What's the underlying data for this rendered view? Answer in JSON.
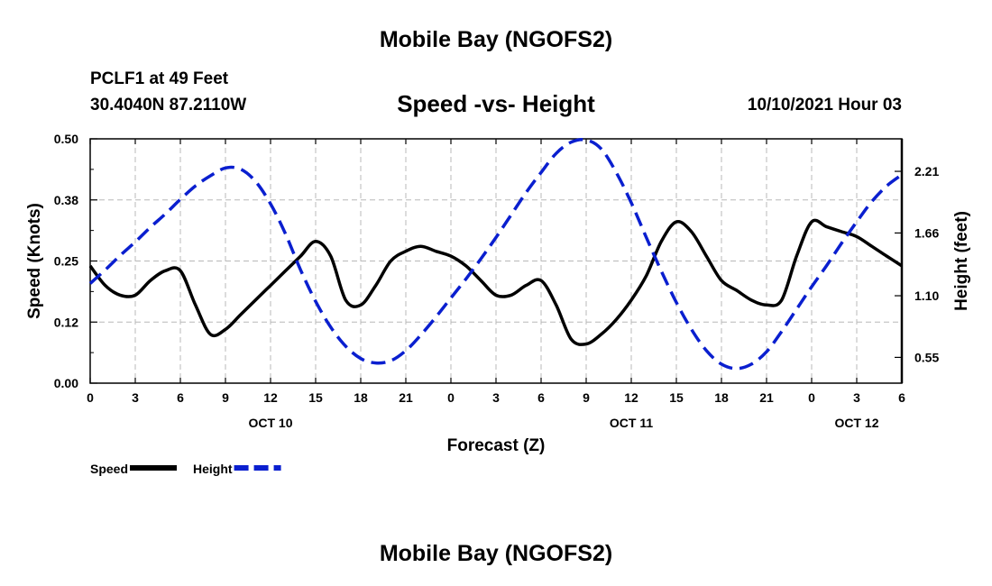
{
  "page": {
    "title": "Mobile Bay (NGOFS2)",
    "footer_title": "Mobile Bay (NGOFS2)",
    "station": "PCLF1 at 49 Feet",
    "coordinates": "30.4040N  87.2110W",
    "subtitle": "Speed -vs- Height",
    "timestamp": "10/10/2021 Hour 03"
  },
  "chart_data": {
    "type": "line",
    "title": "Speed -vs- Height",
    "xlabel": "Forecast (Z)",
    "ylabel": "Speed (Knots)",
    "y2label": "Height (feet)",
    "xlim": [
      0,
      54
    ],
    "ylim": [
      0,
      0.5
    ],
    "y2lim": [
      0.32,
      2.5
    ],
    "grid": true,
    "x_tick_labels": [
      "0",
      "3",
      "6",
      "9",
      "12",
      "15",
      "18",
      "21",
      "0",
      "3",
      "6",
      "9",
      "12",
      "15",
      "18",
      "21",
      "0",
      "3",
      "6"
    ],
    "date_labels": [
      {
        "x": 12,
        "label": "OCT 10"
      },
      {
        "x": 36,
        "label": "OCT 11"
      },
      {
        "x": 51,
        "label": "OCT 12"
      }
    ],
    "y_ticks": [
      "0.00",
      "0.12",
      "0.25",
      "0.38",
      "0.50"
    ],
    "y2_ticks": [
      "0.55",
      "1.10",
      "1.66",
      "2.21"
    ],
    "legend": {
      "position": "bottom-left"
    },
    "series": [
      {
        "name": "Speed",
        "axis": "left",
        "color": "#000000",
        "dash": "solid",
        "x": [
          0,
          1,
          2,
          3,
          4,
          5,
          6,
          7,
          8,
          9,
          10,
          11,
          12,
          13,
          14,
          15,
          16,
          17,
          18,
          19,
          20,
          21,
          22,
          23,
          24,
          25,
          26,
          27,
          28,
          29,
          30,
          31,
          32,
          33,
          34,
          35,
          36,
          37,
          38,
          39,
          40,
          41,
          42,
          43,
          44,
          45,
          46,
          47,
          48,
          49,
          50,
          51,
          52,
          53,
          54
        ],
        "values": [
          0.24,
          0.2,
          0.18,
          0.18,
          0.21,
          0.23,
          0.23,
          0.16,
          0.1,
          0.11,
          0.14,
          0.17,
          0.2,
          0.23,
          0.26,
          0.29,
          0.26,
          0.17,
          0.16,
          0.2,
          0.25,
          0.27,
          0.28,
          0.27,
          0.26,
          0.24,
          0.21,
          0.18,
          0.18,
          0.2,
          0.21,
          0.16,
          0.09,
          0.08,
          0.1,
          0.13,
          0.17,
          0.22,
          0.29,
          0.33,
          0.31,
          0.26,
          0.21,
          0.19,
          0.17,
          0.16,
          0.17,
          0.26,
          0.33,
          0.32,
          0.31,
          0.3,
          0.28,
          0.26,
          0.24
        ]
      },
      {
        "name": "Height",
        "axis": "right",
        "color": "#0a1fcf",
        "dash": "dashed",
        "x": [
          0,
          1,
          2,
          3,
          4,
          5,
          6,
          7,
          8,
          9,
          10,
          11,
          12,
          13,
          14,
          15,
          16,
          17,
          18,
          19,
          20,
          21,
          22,
          23,
          24,
          25,
          26,
          27,
          28,
          29,
          30,
          31,
          32,
          33,
          34,
          35,
          36,
          37,
          38,
          39,
          40,
          41,
          42,
          43,
          44,
          45,
          46,
          47,
          48,
          49,
          50,
          51,
          52,
          53,
          54
        ],
        "values": [
          1.21,
          1.33,
          1.46,
          1.58,
          1.71,
          1.83,
          1.96,
          2.08,
          2.17,
          2.24,
          2.23,
          2.12,
          1.92,
          1.65,
          1.33,
          1.05,
          0.82,
          0.65,
          0.54,
          0.5,
          0.52,
          0.61,
          0.75,
          0.91,
          1.08,
          1.25,
          1.43,
          1.62,
          1.82,
          2.02,
          2.2,
          2.37,
          2.47,
          2.49,
          2.41,
          2.2,
          1.93,
          1.62,
          1.32,
          1.04,
          0.8,
          0.61,
          0.49,
          0.45,
          0.49,
          0.6,
          0.78,
          0.98,
          1.18,
          1.37,
          1.57,
          1.76,
          1.94,
          2.08,
          2.18
        ]
      }
    ]
  }
}
